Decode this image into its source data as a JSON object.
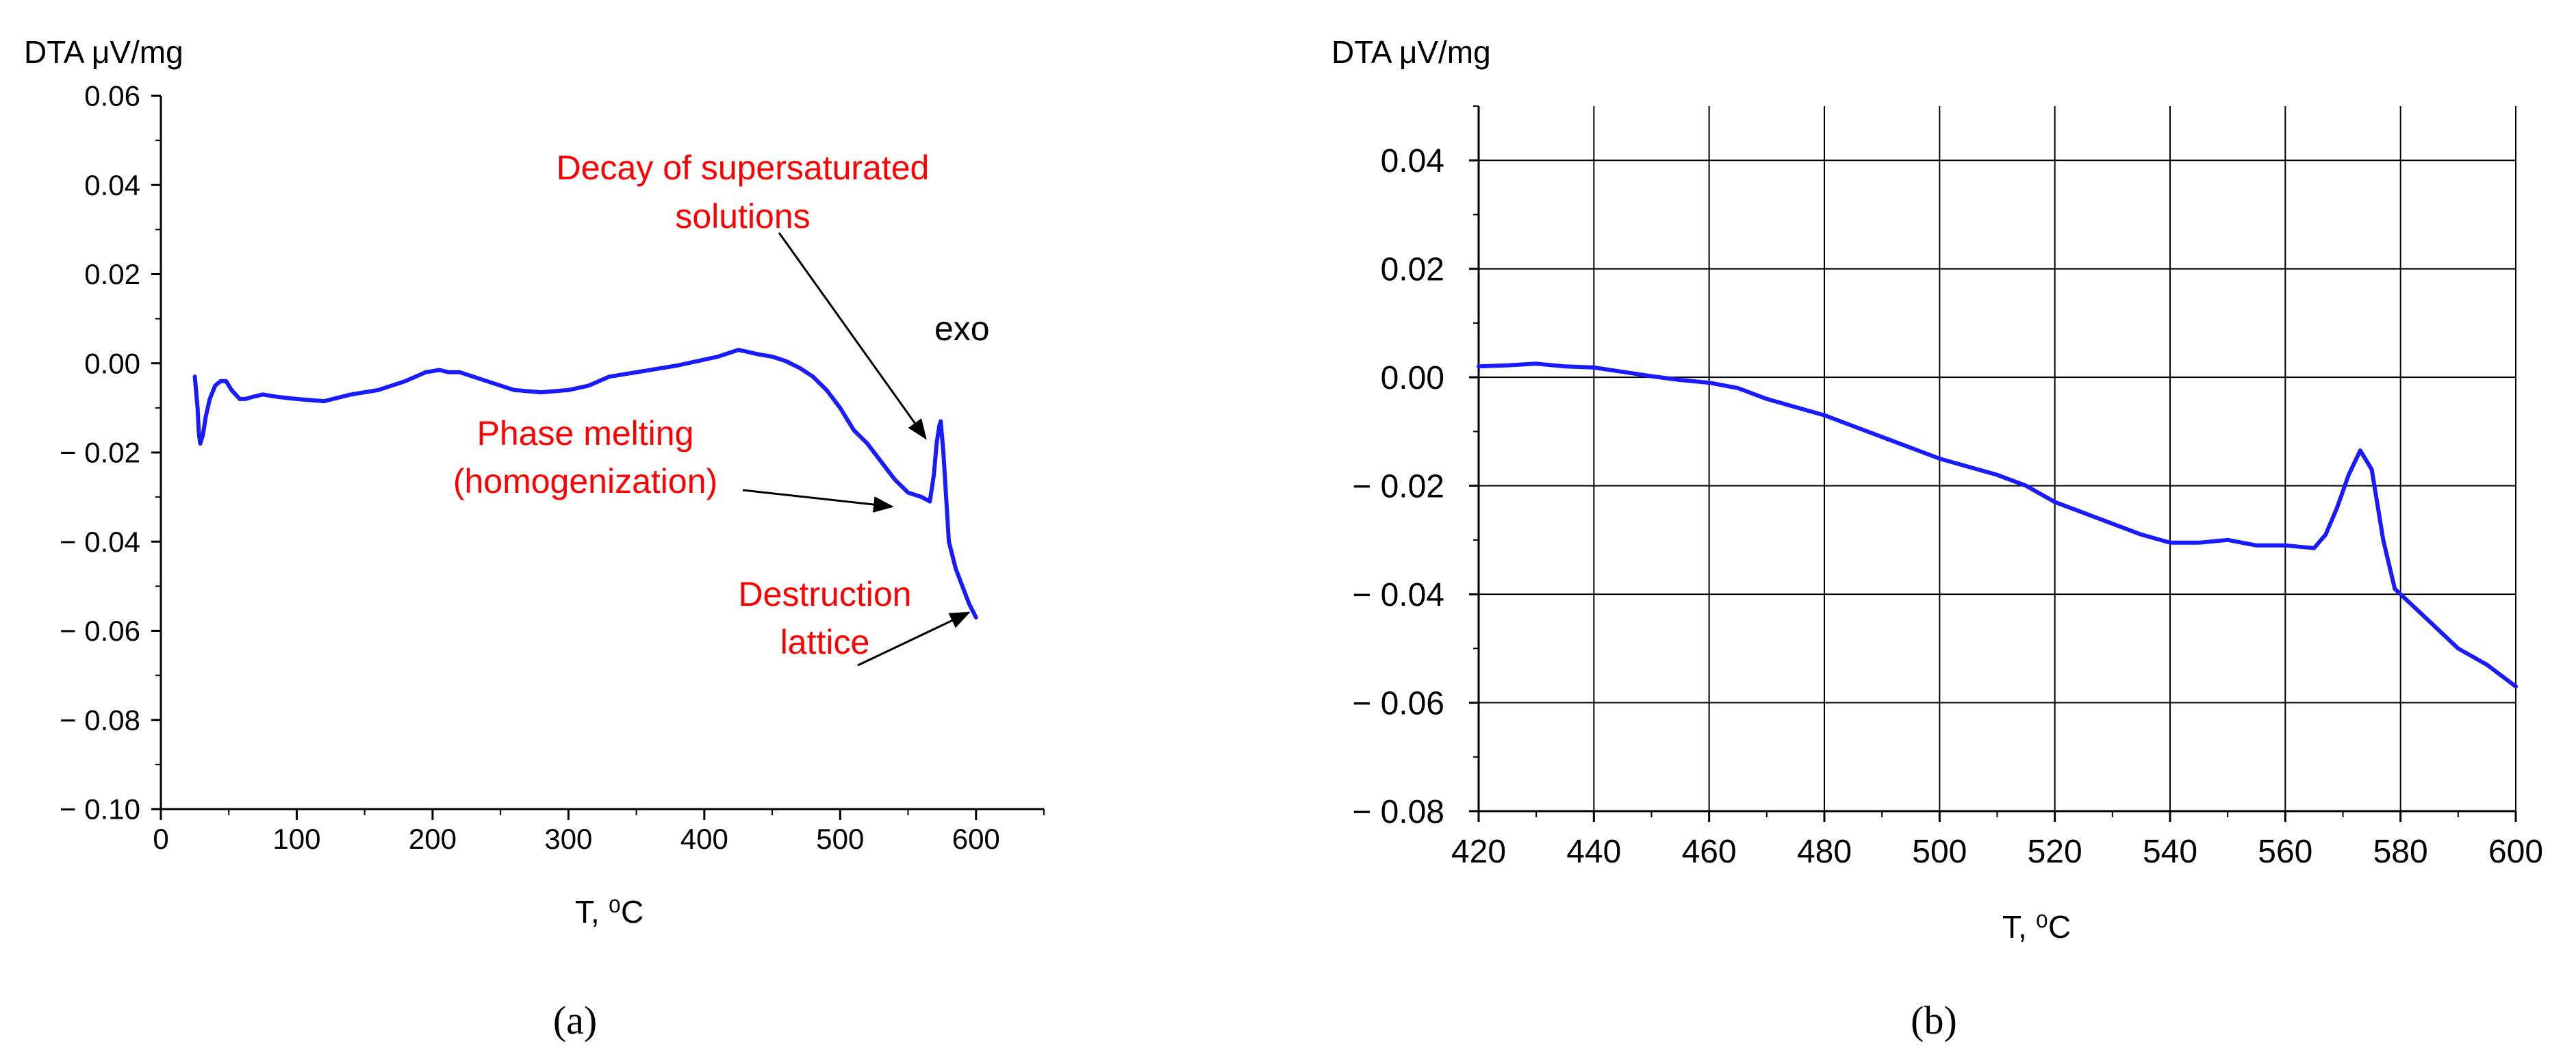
{
  "chart_data": [
    {
      "id": "a",
      "type": "line",
      "caption": "(a)",
      "ylabel": "DTA μV/mg",
      "xlabel": "T, ⁰C",
      "xlim": [
        0,
        650
      ],
      "ylim": [
        -0.1,
        0.06
      ],
      "xticks": [
        0,
        100,
        200,
        300,
        400,
        500,
        600
      ],
      "xtick_labels": [
        "0",
        "100",
        "200",
        "300",
        "400",
        "500",
        "600"
      ],
      "yticks": [
        -0.1,
        -0.08,
        -0.06,
        -0.04,
        -0.02,
        0.0,
        0.02,
        0.04,
        0.06
      ],
      "ytick_labels": [
        "− 0.10",
        "− 0.08",
        "− 0.06",
        "− 0.04",
        "− 0.02",
        "0.00",
        "0.02",
        "0.04",
        "0.06"
      ],
      "grid": false,
      "series": [
        {
          "name": "DTA",
          "color": "#1a1aff",
          "x": [
            25,
            27,
            28,
            29,
            31,
            33,
            36,
            40,
            44,
            48,
            52,
            55,
            58,
            62,
            68,
            75,
            85,
            100,
            120,
            140,
            160,
            180,
            195,
            205,
            212,
            220,
            240,
            260,
            280,
            300,
            315,
            330,
            350,
            380,
            410,
            425,
            430,
            440,
            450,
            460,
            470,
            480,
            490,
            500,
            510,
            520,
            530,
            540,
            550,
            560,
            566,
            569,
            571,
            573,
            574,
            576,
            578,
            580,
            585,
            590,
            595,
            600
          ],
          "y": [
            -0.003,
            -0.01,
            -0.016,
            -0.018,
            -0.016,
            -0.012,
            -0.008,
            -0.005,
            -0.004,
            -0.004,
            -0.006,
            -0.007,
            -0.008,
            -0.008,
            -0.0075,
            -0.007,
            -0.0075,
            -0.008,
            -0.0085,
            -0.007,
            -0.006,
            -0.004,
            -0.002,
            -0.0015,
            -0.002,
            -0.002,
            -0.004,
            -0.006,
            -0.0065,
            -0.006,
            -0.005,
            -0.003,
            -0.002,
            -0.0005,
            0.0015,
            0.003,
            0.0027,
            0.002,
            0.0015,
            0.0005,
            -0.001,
            -0.003,
            -0.006,
            -0.01,
            -0.015,
            -0.018,
            -0.022,
            -0.026,
            -0.029,
            -0.03,
            -0.031,
            -0.025,
            -0.018,
            -0.014,
            -0.013,
            -0.02,
            -0.03,
            -0.04,
            -0.046,
            -0.05,
            -0.054,
            -0.057
          ]
        }
      ],
      "annotations": [
        {
          "lines": [
            "Decay of supersaturated",
            "solutions"
          ],
          "color": "#ff0000",
          "arrow_to": [
            573,
            -0.014
          ]
        },
        {
          "lines": [
            "exo"
          ],
          "color": "#000000"
        },
        {
          "lines": [
            "Phase melting",
            "(homogenization)"
          ],
          "color": "#ff0000",
          "arrow_to": [
            555,
            -0.0325
          ]
        },
        {
          "lines": [
            "Destruction",
            "lattice"
          ],
          "color": "#ff0000",
          "arrow_to": [
            600,
            -0.055
          ]
        }
      ]
    },
    {
      "id": "b",
      "type": "line",
      "caption": "(b)",
      "ylabel": "DTA μV/mg",
      "xlabel": "T, ⁰C",
      "xlim": [
        420,
        600
      ],
      "ylim": [
        -0.08,
        0.05
      ],
      "xticks": [
        420,
        440,
        460,
        480,
        500,
        520,
        540,
        560,
        580,
        600
      ],
      "xtick_labels": [
        "420",
        "440",
        "460",
        "480",
        "500",
        "520",
        "540",
        "560",
        "580",
        "600"
      ],
      "yticks": [
        -0.08,
        -0.06,
        -0.04,
        -0.02,
        0.0,
        0.02,
        0.04
      ],
      "ytick_labels": [
        "− 0.08",
        "− 0.06",
        "− 0.04",
        "− 0.02",
        "0.00",
        "0.02",
        "0.04"
      ],
      "grid": true,
      "series": [
        {
          "name": "DTA",
          "color": "#1a1aff",
          "x": [
            420,
            425,
            430,
            435,
            440,
            445,
            450,
            455,
            460,
            465,
            470,
            475,
            480,
            485,
            490,
            495,
            500,
            505,
            510,
            515,
            520,
            525,
            530,
            535,
            540,
            545,
            550,
            555,
            560,
            565,
            567,
            569,
            571,
            573,
            575,
            577,
            579,
            582,
            586,
            590,
            595,
            600
          ],
          "y": [
            0.002,
            0.0022,
            0.0025,
            0.002,
            0.0018,
            0.001,
            0.0002,
            -0.0005,
            -0.001,
            -0.002,
            -0.004,
            -0.0055,
            -0.007,
            -0.009,
            -0.011,
            -0.013,
            -0.015,
            -0.0165,
            -0.018,
            -0.02,
            -0.023,
            -0.025,
            -0.027,
            -0.029,
            -0.0305,
            -0.0305,
            -0.03,
            -0.031,
            -0.031,
            -0.0315,
            -0.029,
            -0.024,
            -0.018,
            -0.0135,
            -0.017,
            -0.03,
            -0.039,
            -0.042,
            -0.046,
            -0.05,
            -0.053,
            -0.057
          ]
        }
      ]
    }
  ]
}
